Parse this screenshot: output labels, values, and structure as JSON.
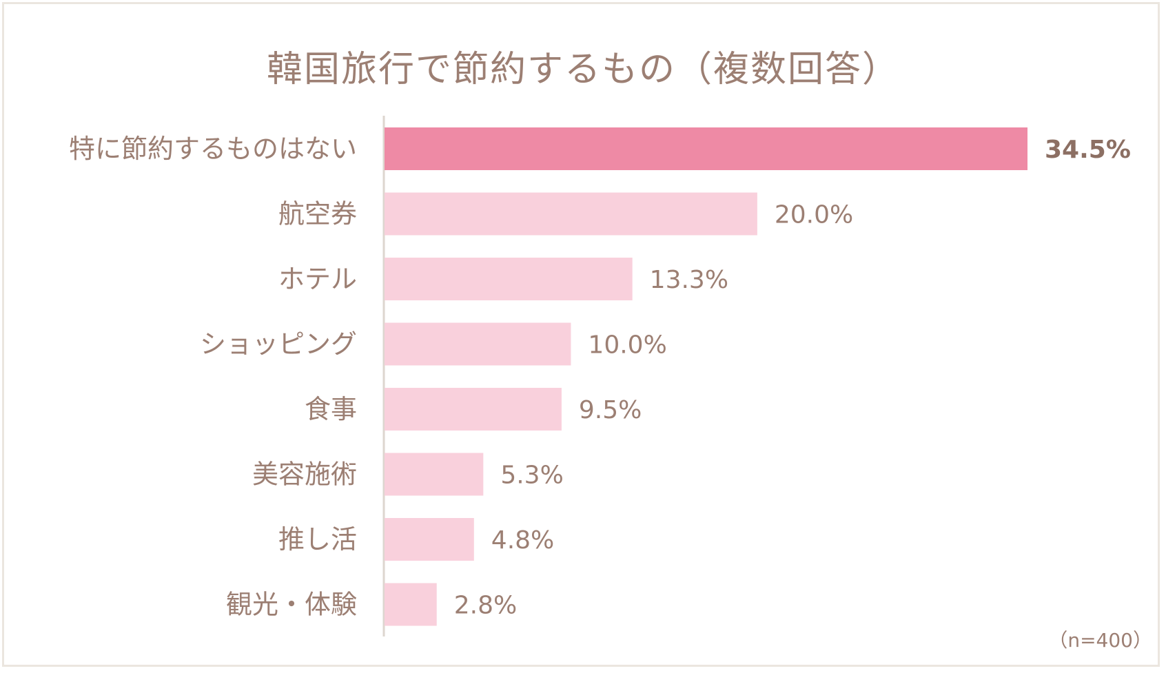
{
  "chart_data": {
    "type": "bar",
    "orientation": "horizontal",
    "title": "韓国旅行で節約するもの（複数回答）",
    "categories": [
      "特に節約するものはない",
      "航空券",
      "ホテル",
      "ショッピング",
      "食事",
      "美容施術",
      "推し活",
      "観光・体験"
    ],
    "values": [
      34.5,
      20.0,
      13.3,
      10.0,
      9.5,
      5.3,
      4.8,
      2.8
    ],
    "value_labels": [
      "34.5%",
      "20.0%",
      "13.3%",
      "10.0%",
      "9.5%",
      "5.3%",
      "4.8%",
      "2.8%"
    ],
    "highlight_index": 0,
    "colors": {
      "highlight": "#ee8aa5",
      "default": "#f9d0dc",
      "text": "#9c7f73",
      "axis": "#ddd6cf"
    },
    "note": "（n=400）",
    "xlim": [
      0,
      34.5
    ],
    "grid": false
  }
}
